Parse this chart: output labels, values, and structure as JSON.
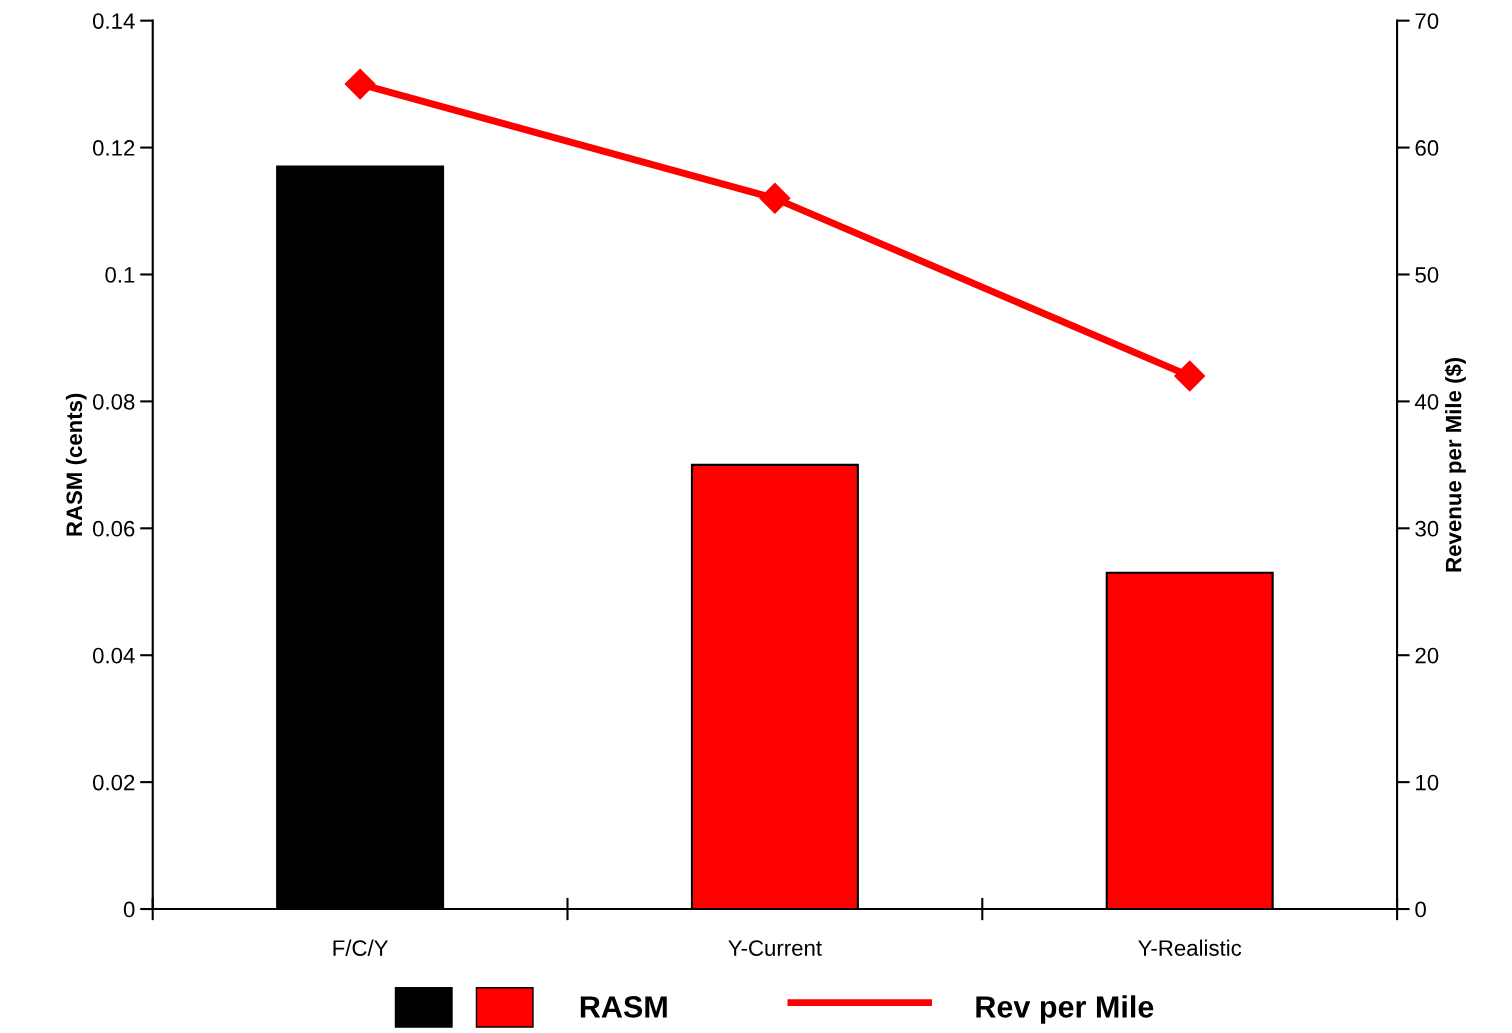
{
  "chart_data": {
    "type": "bar",
    "categories": [
      "F/C/Y",
      "Y-Current",
      "Y-Realistic"
    ],
    "series": [
      {
        "name": "RASM",
        "colors": [
          "#000000",
          "#ff0000",
          "#ff0000"
        ],
        "values": [
          0.117,
          0.07,
          0.053
        ]
      },
      {
        "name": "Rev per Mile",
        "type": "line",
        "axis": "y2",
        "color": "#ff0000",
        "marker": "diamond",
        "values": [
          65,
          56,
          42
        ]
      }
    ],
    "ylabel": "RASM (cents)",
    "y2label": "Revenue per Mile ($)",
    "ylim": [
      0,
      0.14
    ],
    "yticks": [
      0,
      0.02,
      0.04,
      0.06,
      0.08,
      0.1,
      0.12,
      0.14
    ],
    "y2lim": [
      0,
      70
    ],
    "y2ticks": [
      0,
      10,
      20,
      30,
      40,
      50,
      60,
      70
    ],
    "grid": false,
    "legend": "bottom"
  }
}
